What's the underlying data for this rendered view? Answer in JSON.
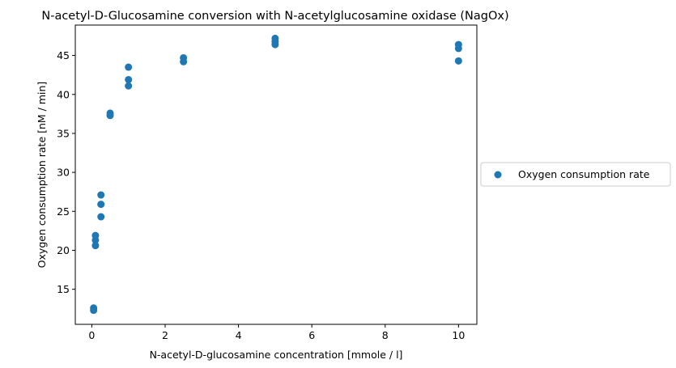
{
  "chart_data": {
    "type": "scatter",
    "title": "N-acetyl-D-Glucosamine conversion with N-acetylglucosamine oxidase (NagOx)",
    "xlabel": "N-acetyl-D-glucosamine concentration [mmole / l]",
    "ylabel": "Oxygen consumption rate [nM / min]",
    "xlim": [
      -0.45,
      10.5
    ],
    "ylim": [
      10.5,
      48.9
    ],
    "xticks": [
      0,
      2,
      4,
      6,
      8,
      10
    ],
    "yticks": [
      15,
      20,
      25,
      30,
      35,
      40,
      45
    ],
    "grid": false,
    "legend_position": "center-right outside",
    "series": [
      {
        "name": "Oxygen consumption rate",
        "color": "#1f77b4",
        "points": [
          {
            "x": 0.05,
            "y": 12.6
          },
          {
            "x": 0.05,
            "y": 12.3
          },
          {
            "x": 0.1,
            "y": 21.9
          },
          {
            "x": 0.1,
            "y": 21.3
          },
          {
            "x": 0.1,
            "y": 20.6
          },
          {
            "x": 0.25,
            "y": 27.1
          },
          {
            "x": 0.25,
            "y": 25.9
          },
          {
            "x": 0.25,
            "y": 24.3
          },
          {
            "x": 0.5,
            "y": 37.6
          },
          {
            "x": 0.5,
            "y": 37.3
          },
          {
            "x": 1.0,
            "y": 43.5
          },
          {
            "x": 1.0,
            "y": 41.9
          },
          {
            "x": 1.0,
            "y": 41.1
          },
          {
            "x": 2.5,
            "y": 44.7
          },
          {
            "x": 2.5,
            "y": 44.2
          },
          {
            "x": 5.0,
            "y": 47.2
          },
          {
            "x": 5.0,
            "y": 46.8
          },
          {
            "x": 5.0,
            "y": 46.4
          },
          {
            "x": 10.0,
            "y": 46.4
          },
          {
            "x": 10.0,
            "y": 45.9
          },
          {
            "x": 10.0,
            "y": 44.3
          }
        ]
      }
    ]
  }
}
